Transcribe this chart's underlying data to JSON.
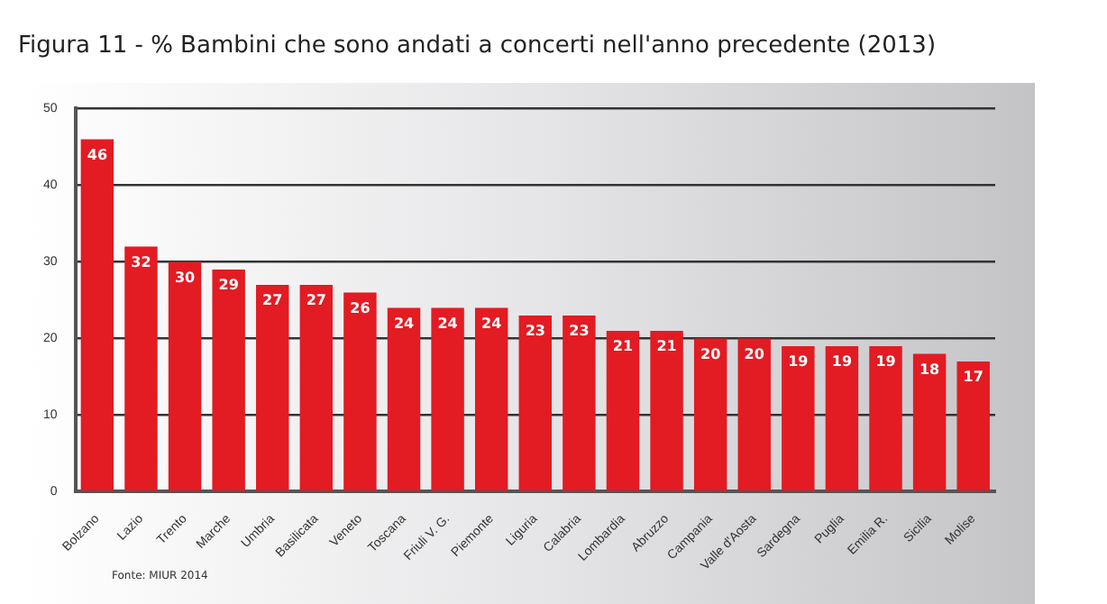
{
  "chart_data": {
    "type": "bar",
    "title": "Figura 11 - % Bambini che sono andati a concerti nell'anno precedente (2013)",
    "categories": [
      "Bolzano",
      "Lazio",
      "Trento",
      "Marche",
      "Umbria",
      "Basilicata",
      "Veneto",
      "Toscana",
      "Friuli V. G.",
      "Piemonte",
      "Liguria",
      "Calabria",
      "Lombardia",
      "Abruzzo",
      "Campania",
      "Valle d'Aosta",
      "Sardegna",
      "Puglia",
      "Emilia R.",
      "Sicilia",
      "Molise"
    ],
    "values": [
      46,
      32,
      30,
      29,
      27,
      27,
      26,
      24,
      24,
      24,
      23,
      23,
      21,
      21,
      20,
      20,
      19,
      19,
      19,
      18,
      17
    ],
    "color": "#e31b23",
    "ylim": [
      0,
      50
    ],
    "yticks": [
      0,
      10,
      20,
      30,
      40,
      50
    ],
    "grid": "y",
    "data_labels": true,
    "annotations": [
      "Fonte: MIUR 2014"
    ]
  }
}
